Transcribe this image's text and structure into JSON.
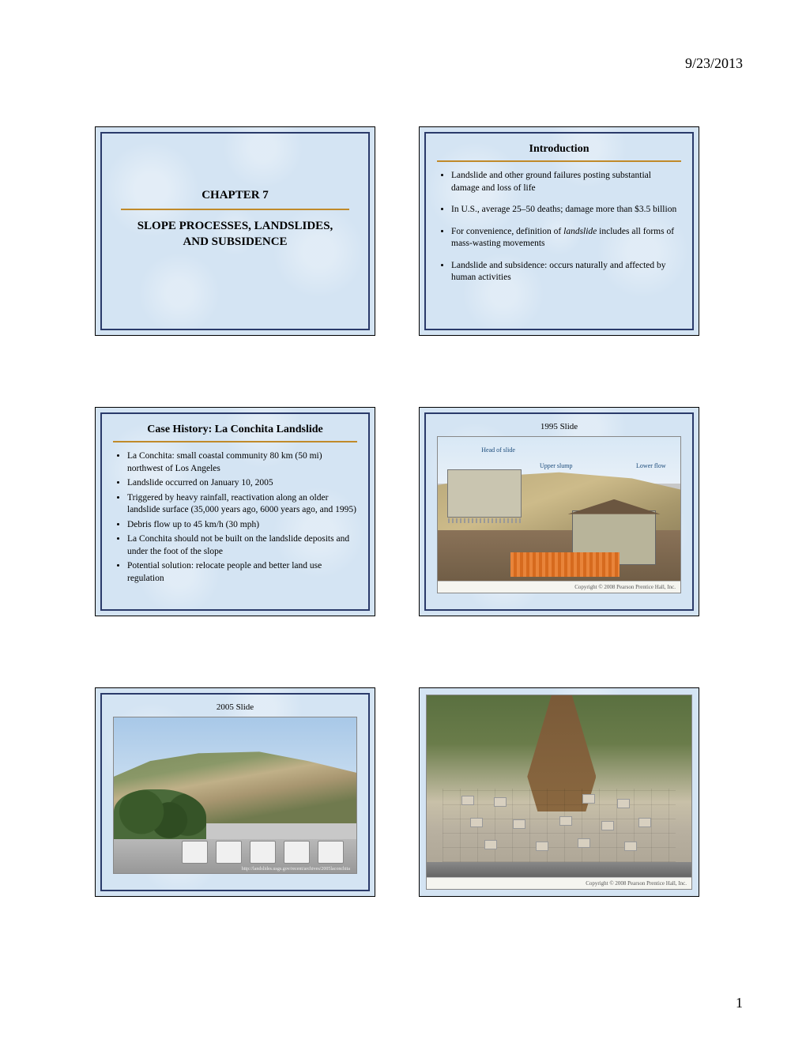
{
  "page": {
    "date": "9/23/2013",
    "number": "1",
    "background_color": "#ffffff",
    "slide_bg_color": "#d4e4f3",
    "slide_border_color": "#2a3a6a",
    "rule_color": "#c08a2a"
  },
  "slides": {
    "s1": {
      "chapter": "CHAPTER 7",
      "title_line1": "SLOPE PROCESSES, LANDSLIDES,",
      "title_line2": "AND SUBSIDENCE"
    },
    "s2": {
      "heading": "Introduction",
      "bullets": [
        "Landslide and other ground failures posting substantial damage and loss of life",
        "In U.S., average 25–50 deaths; damage more than $3.5 billion",
        "For convenience, definition of landslide includes all forms of mass-wasting movements",
        "Landslide and subsidence: occurs naturally and affected by human activities"
      ],
      "italic_word_index": 2,
      "italic_word": "landslide"
    },
    "s3": {
      "heading": "Case History: La Conchita Landslide",
      "bullets": [
        "La Conchita: small coastal community 80 km (50 mi)  northwest of Los Angeles",
        "Landslide occurred on January 10, 2005",
        "Triggered by heavy rainfall, reactivation along an older landslide surface (35,000 years ago, 6000 years ago, and 1995)",
        "Debris flow up to 45 km/h (30 mph)",
        "La Conchita should not be built on the landslide deposits and under the foot of the slope",
        "Potential solution: relocate people and better land use regulation"
      ]
    },
    "s4": {
      "caption": "1995 Slide",
      "labels": {
        "head": "Head of slide",
        "upper": "Upper slump",
        "lower": "Lower flow"
      },
      "credit": "Copyright © 2008 Pearson Prentice Hall, Inc."
    },
    "s5": {
      "caption": "2005 Slide",
      "link_text": "http://landslides.usgs.gov/recent/archives/2005laconchita"
    },
    "s6": {
      "credit": "Copyright © 2008 Pearson Prentice Hall, Inc."
    }
  }
}
